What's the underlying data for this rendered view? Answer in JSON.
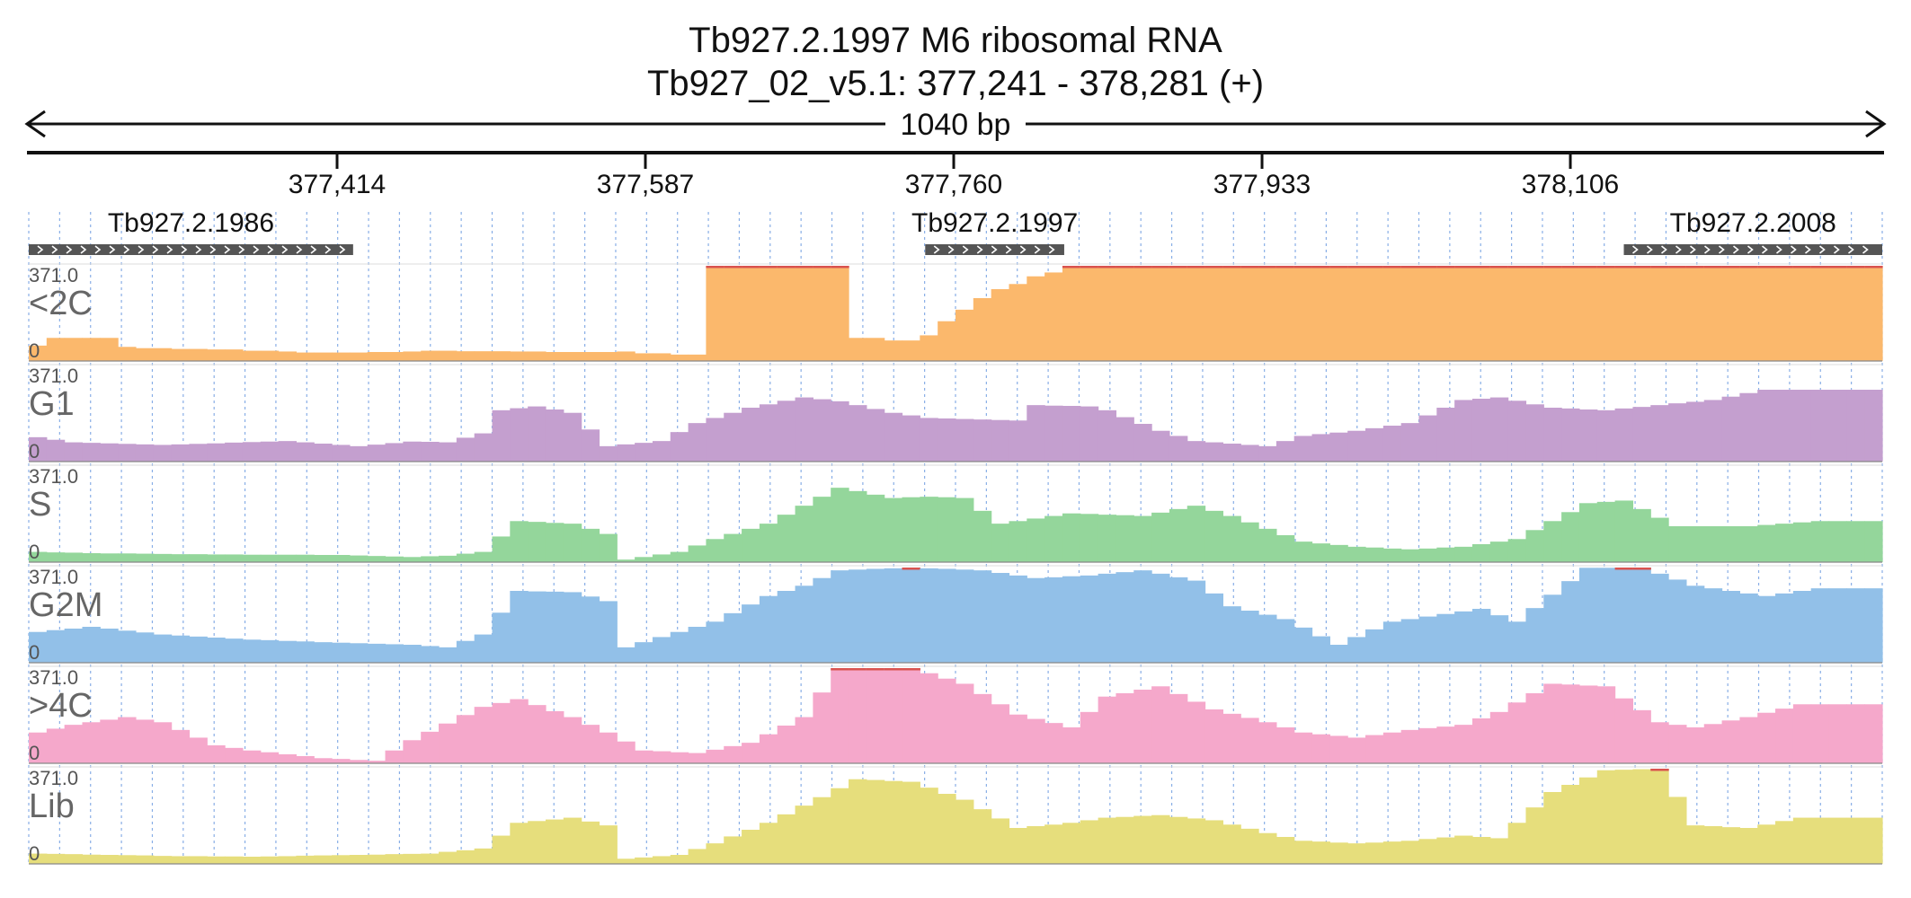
{
  "header": {
    "title": "Tb927.2.1997  M6 ribosomal RNA",
    "subtitle": "Tb927_02_v5.1: 377,241 - 378,281 (+)",
    "span_label": "1040 bp"
  },
  "ruler": {
    "range": [
      377241,
      378281
    ],
    "ticks": [
      "377,414",
      "377,587",
      "377,760",
      "377,933",
      "378,106"
    ]
  },
  "genes": [
    {
      "label": "Tb927.2.1986",
      "start": 377241,
      "end": 377423
    },
    {
      "label": "Tb927.2.1997",
      "start": 377744,
      "end": 377822
    },
    {
      "label": "Tb927.2.2008",
      "start": 378136,
      "end": 378281
    }
  ],
  "chart_data": {
    "type": "area",
    "x_range": [
      377241,
      378281
    ],
    "ylim": [
      0,
      371.0
    ],
    "y_max_label": "371.0",
    "y_min_label": "0",
    "bin_count": 104,
    "series": [
      {
        "name": "<2C",
        "color": "#fbb86c",
        "values": [
          60,
          90,
          90,
          90,
          90,
          55,
          50,
          50,
          47,
          47,
          45,
          45,
          40,
          40,
          37,
          33,
          33,
          33,
          33,
          35,
          35,
          37,
          40,
          40,
          38,
          38,
          38,
          37,
          37,
          35,
          35,
          35,
          35,
          37,
          30,
          30,
          25,
          25,
          371,
          371,
          371,
          371,
          371,
          371,
          371,
          371,
          90,
          90,
          80,
          80,
          100,
          155,
          200,
          245,
          280,
          300,
          330,
          345,
          371,
          371,
          371,
          371,
          371,
          371,
          371,
          371,
          371,
          371,
          371,
          371,
          371,
          371,
          371,
          371,
          371,
          371,
          371,
          371,
          371,
          371,
          371,
          371,
          371,
          371,
          371,
          371,
          371,
          371,
          371,
          371,
          371,
          371,
          371,
          371,
          371,
          371,
          371,
          371,
          371,
          371,
          371,
          371,
          371,
          371
        ]
      },
      {
        "name": "G1",
        "color": "#c49fcf",
        "values": []
      },
      {
        "name": "S",
        "color": "#94d69b",
        "values": []
      },
      {
        "name": "G2M",
        "color": "#92c0e8",
        "values": []
      },
      {
        "name": ">4C",
        "color": "#f5a8cb",
        "values": []
      },
      {
        "name": "Lib",
        "color": "#e6de7c",
        "values": []
      }
    ]
  },
  "colors": {
    "axis": "#111111",
    "grid": "#6b9be0",
    "gene_bar": "#555555",
    "clip_marker": "#d9534f",
    "track_label": "#666666"
  }
}
